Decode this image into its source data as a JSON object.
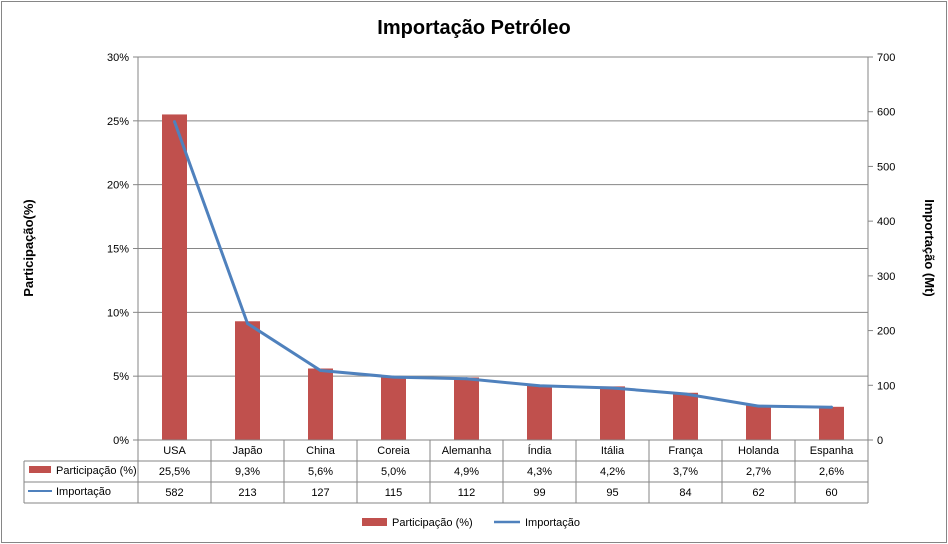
{
  "chart_data": {
    "type": "bar+line",
    "title": "Importação Petróleo",
    "categories": [
      "USA",
      "Japão",
      "China",
      "Coreia",
      "Alemanha",
      "Índia",
      "Itália",
      "França",
      "Holanda",
      "Espanha"
    ],
    "series": [
      {
        "name": "Participação (%)",
        "type": "bar",
        "axis": "left",
        "values": [
          25.5,
          9.3,
          5.6,
          5.0,
          4.9,
          4.3,
          4.2,
          3.7,
          2.7,
          2.6
        ],
        "labels": [
          "25,5%",
          "9,3%",
          "5,6%",
          "5,0%",
          "4,9%",
          "4,3%",
          "4,2%",
          "3,7%",
          "2,7%",
          "2,6%"
        ]
      },
      {
        "name": "Importação",
        "type": "line",
        "axis": "right",
        "values": [
          582,
          213,
          127,
          115,
          112,
          99,
          95,
          84,
          62,
          60
        ],
        "labels": [
          "582",
          "213",
          "127",
          "115",
          "112",
          "99",
          "95",
          "84",
          "62",
          "60"
        ]
      }
    ],
    "ylabel_left": "Participação(%)",
    "ylabel_right": "Importação (Mt)",
    "ylim_left": [
      0,
      30
    ],
    "ylim_right": [
      0,
      700
    ],
    "yticks_left": [
      "0%",
      "5%",
      "10%",
      "15%",
      "20%",
      "25%",
      "30%"
    ],
    "yticks_right": [
      "0",
      "100",
      "200",
      "300",
      "400",
      "500",
      "600",
      "700"
    ],
    "grid": true,
    "legend": "bottom",
    "data_table": true,
    "colors": {
      "bar": "#C0504D",
      "line": "#4F81BD",
      "grid": "#868686"
    }
  }
}
